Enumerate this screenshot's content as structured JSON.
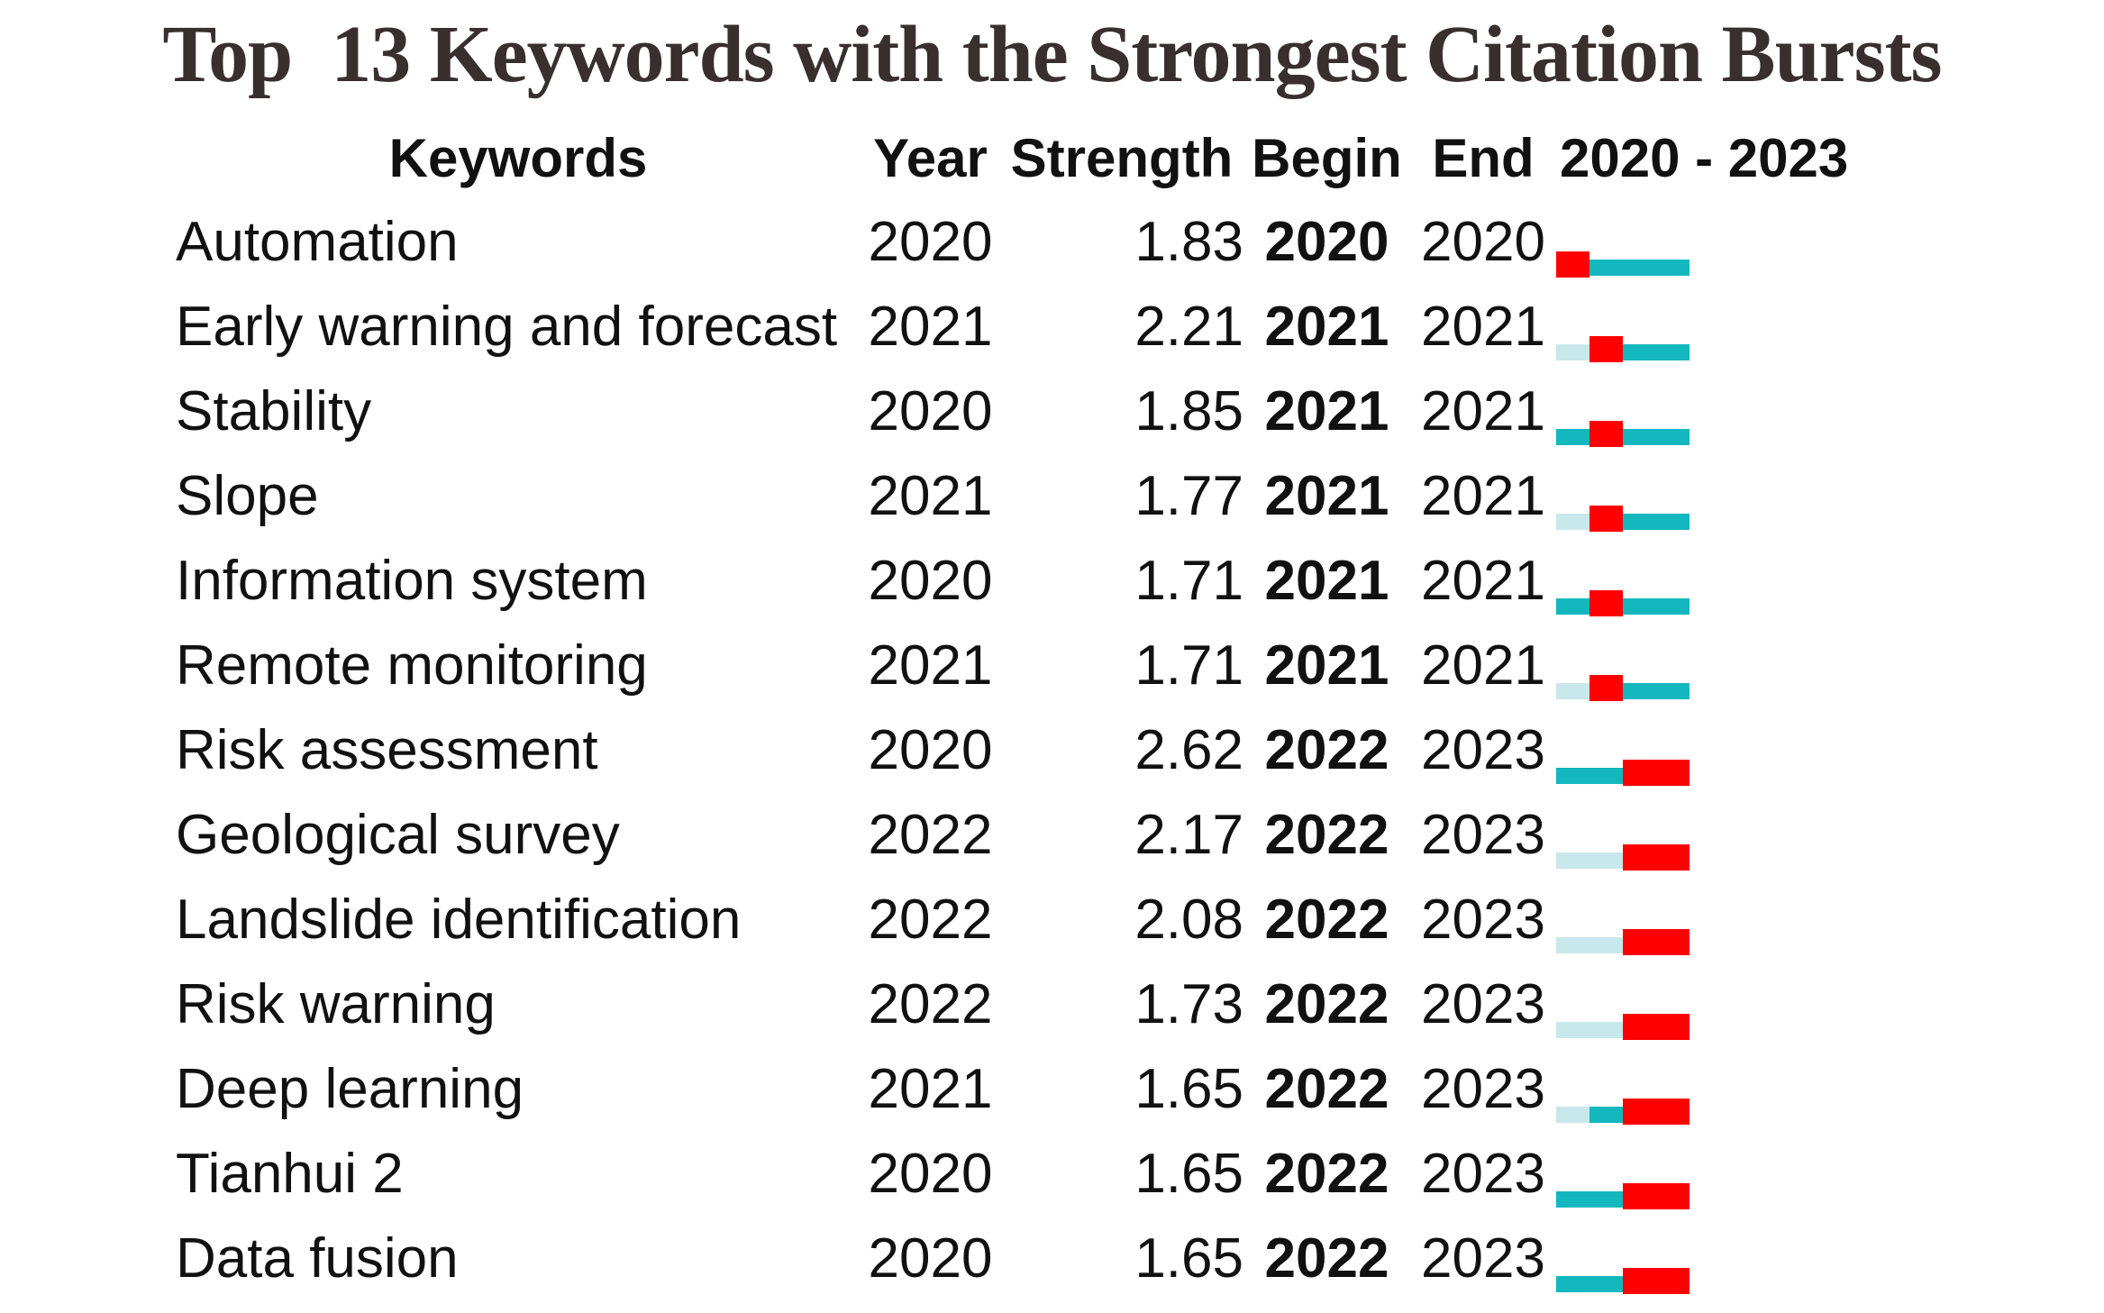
{
  "title": "Top  13 Keywords with the Strongest Citation Bursts",
  "columns": {
    "keywords": "Keywords",
    "year": "Year",
    "strength": "Strength",
    "begin": "Begin",
    "end": "End",
    "timeline_range": "2020 - 2023"
  },
  "colors": {
    "burst": "#FE0000",
    "active": "#12B8BE",
    "inactive": "#C9E8EB",
    "title_text": "#382F2E",
    "body_text": "#111111"
  },
  "chart_data": {
    "type": "table",
    "title": "Top  13 Keywords with the Strongest Citation Bursts",
    "timeline": {
      "start_year": 2020,
      "end_year": 2023,
      "years": [
        2020,
        2021,
        2022,
        2023
      ]
    },
    "segment_legend": {
      "pre": "before first appearance (pale)",
      "on": "active non-burst (teal)",
      "burst": "citation burst (red)"
    },
    "rows": [
      {
        "keyword": "Automation",
        "year": "2020",
        "strength": "1.83",
        "begin": "2020",
        "end": "2020",
        "segments": [
          "burst",
          "on",
          "on",
          "on"
        ]
      },
      {
        "keyword": "Early warning and forecast",
        "year": "2021",
        "strength": "2.21",
        "begin": "2021",
        "end": "2021",
        "segments": [
          "pre",
          "burst",
          "on",
          "on"
        ]
      },
      {
        "keyword": "Stability",
        "year": "2020",
        "strength": "1.85",
        "begin": "2021",
        "end": "2021",
        "segments": [
          "on",
          "burst",
          "on",
          "on"
        ]
      },
      {
        "keyword": "Slope",
        "year": "2021",
        "strength": "1.77",
        "begin": "2021",
        "end": "2021",
        "segments": [
          "pre",
          "burst",
          "on",
          "on"
        ]
      },
      {
        "keyword": "Information system",
        "year": "2020",
        "strength": "1.71",
        "begin": "2021",
        "end": "2021",
        "segments": [
          "on",
          "burst",
          "on",
          "on"
        ]
      },
      {
        "keyword": "Remote monitoring",
        "year": "2021",
        "strength": "1.71",
        "begin": "2021",
        "end": "2021",
        "segments": [
          "pre",
          "burst",
          "on",
          "on"
        ]
      },
      {
        "keyword": "Risk assessment",
        "year": "2020",
        "strength": "2.62",
        "begin": "2022",
        "end": "2023",
        "segments": [
          "on",
          "on",
          "burst",
          "burst"
        ]
      },
      {
        "keyword": "Geological survey",
        "year": "2022",
        "strength": "2.17",
        "begin": "2022",
        "end": "2023",
        "segments": [
          "pre",
          "pre",
          "burst",
          "burst"
        ]
      },
      {
        "keyword": "Landslide identification",
        "year": "2022",
        "strength": "2.08",
        "begin": "2022",
        "end": "2023",
        "segments": [
          "pre",
          "pre",
          "burst",
          "burst"
        ]
      },
      {
        "keyword": "Risk warning",
        "year": "2022",
        "strength": "1.73",
        "begin": "2022",
        "end": "2023",
        "segments": [
          "pre",
          "pre",
          "burst",
          "burst"
        ]
      },
      {
        "keyword": "Deep learning",
        "year": "2021",
        "strength": "1.65",
        "begin": "2022",
        "end": "2023",
        "segments": [
          "pre",
          "on",
          "burst",
          "burst"
        ]
      },
      {
        "keyword": "Tianhui 2",
        "year": "2020",
        "strength": "1.65",
        "begin": "2022",
        "end": "2023",
        "segments": [
          "on",
          "on",
          "burst",
          "burst"
        ]
      },
      {
        "keyword": "Data fusion",
        "year": "2020",
        "strength": "1.65",
        "begin": "2022",
        "end": "2023",
        "segments": [
          "on",
          "on",
          "burst",
          "burst"
        ]
      }
    ]
  }
}
